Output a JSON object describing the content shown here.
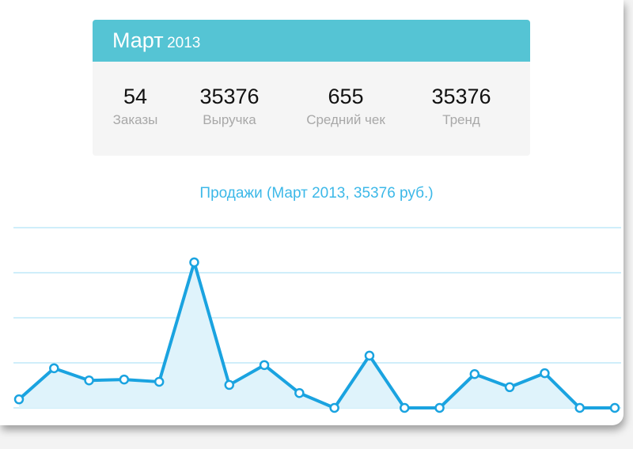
{
  "header": {
    "month": "Март",
    "year": "2013"
  },
  "stats": [
    {
      "value": 54,
      "label": "Заказы"
    },
    {
      "value": 35376,
      "label": "Выручка"
    },
    {
      "value": 655,
      "label": "Средний чек"
    },
    {
      "value": 35376,
      "label": "Тренд"
    }
  ],
  "chart_data": {
    "type": "line",
    "title": "Продажи (Март 2013, 35376 руб.)",
    "values": [
      0.19,
      0.88,
      0.61,
      0.63,
      0.58,
      3.23,
      0.51,
      0.95,
      0.33,
      0,
      1.16,
      0,
      0,
      0.75,
      0.46,
      0.77,
      0,
      0
    ],
    "ylim": [
      0,
      4
    ],
    "yticks": [
      0,
      1,
      2,
      3,
      4
    ],
    "grid": true,
    "color": "#1aa3e0",
    "fill": "#dff3fb",
    "grid_color": "#bfe9f9"
  }
}
